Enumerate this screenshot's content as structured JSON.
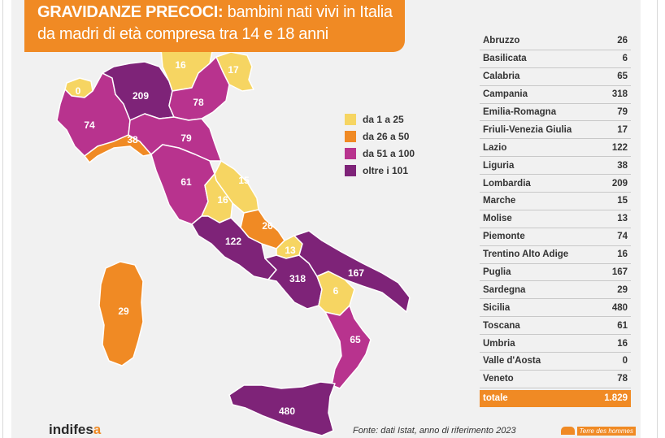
{
  "title": {
    "strong": "GRAVIDANZE PRECOCI:",
    "rest": " bambini nati vivi in Italia",
    "line2": "da madri di età compresa tra 14 e 18 anni"
  },
  "colors": {
    "yellow": "#f6d562",
    "orange": "#f08a24",
    "magenta": "#b8338e",
    "purple": "#7e2378"
  },
  "legend": [
    {
      "label": "da 1 a 25",
      "color": "#f6d562"
    },
    {
      "label": "da 26 a 50",
      "color": "#f08a24"
    },
    {
      "label": "da 51 a 100",
      "color": "#b8338e"
    },
    {
      "label": "oltre i 101",
      "color": "#7e2378"
    }
  ],
  "regions": [
    {
      "name": "Abruzzo",
      "value": "26"
    },
    {
      "name": "Basilicata",
      "value": "6"
    },
    {
      "name": "Calabria",
      "value": "65"
    },
    {
      "name": "Campania",
      "value": "318"
    },
    {
      "name": "Emilia-Romagna",
      "value": "79"
    },
    {
      "name": "Friuli-Venezia Giulia",
      "value": "17"
    },
    {
      "name": "Lazio",
      "value": "122"
    },
    {
      "name": "Liguria",
      "value": "38"
    },
    {
      "name": "Lombardia",
      "value": "209"
    },
    {
      "name": "Marche",
      "value": "15"
    },
    {
      "name": "Molise",
      "value": "13"
    },
    {
      "name": "Piemonte",
      "value": "74"
    },
    {
      "name": "Trentino Alto Adige",
      "value": "16"
    },
    {
      "name": "Puglia",
      "value": "167"
    },
    {
      "name": "Sardegna",
      "value": "29"
    },
    {
      "name": "Sicilia",
      "value": "480"
    },
    {
      "name": "Toscana",
      "value": "61"
    },
    {
      "name": "Umbria",
      "value": "16"
    },
    {
      "name": "Valle d'Aosta",
      "value": "0"
    },
    {
      "name": "Veneto",
      "value": "78"
    }
  ],
  "total": {
    "label": "totale",
    "value": "1.829"
  },
  "source": "Fonte: dati Istat, anno di riferimento 2023",
  "logo_left": {
    "main": "indifes",
    "tail": "a"
  },
  "logo_right": "Terre des hommes"
}
